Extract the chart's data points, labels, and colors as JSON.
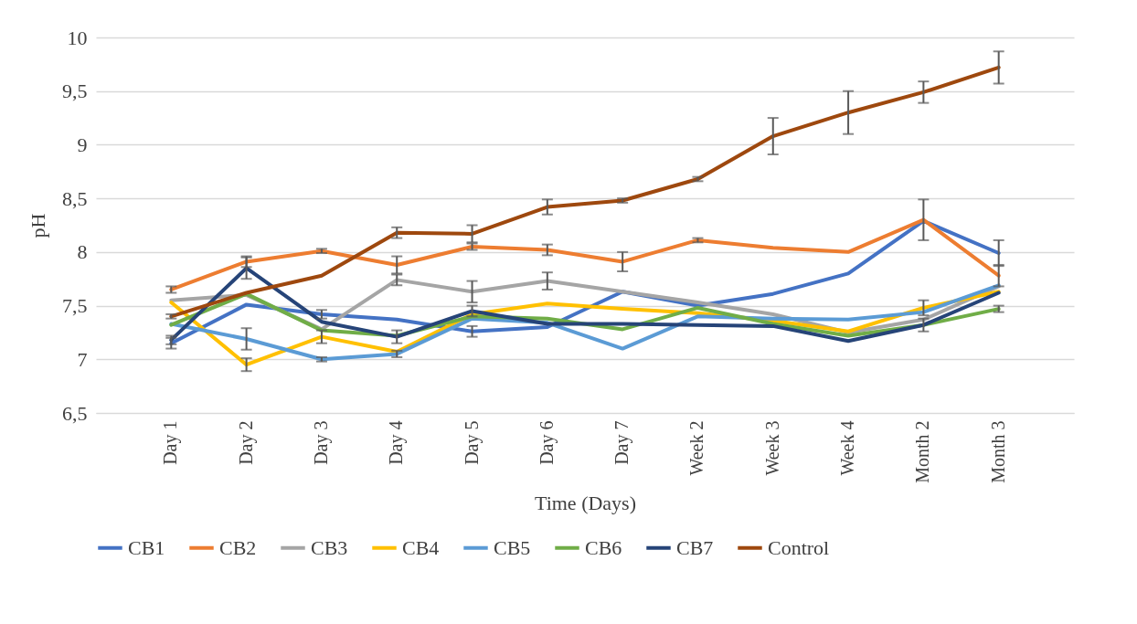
{
  "chart_data": {
    "type": "line",
    "xlabel": "Time (Days)",
    "ylabel": "pH",
    "categories": [
      "Day 1",
      "Day 2",
      "Day 3",
      "Day 4",
      "Day 5",
      "Day 6",
      "Day 7",
      "Week 2",
      "Week 3",
      "Week 4",
      "Month 2",
      "Month 3"
    ],
    "ylim": [
      6.5,
      10
    ],
    "yticks": [
      {
        "value": 6.5,
        "label": "6,5"
      },
      7,
      {
        "value": 7.5,
        "label": "7,5"
      },
      8,
      {
        "value": 8.5,
        "label": "8,5"
      },
      9,
      {
        "value": 9.5,
        "label": "9,5"
      },
      10
    ],
    "grid": "y",
    "legend": "bottom",
    "marker": "none",
    "line_style": "solid",
    "series": [
      {
        "name": "CB1",
        "color": "#4472c4",
        "values": [
          7.15,
          7.51,
          7.42,
          7.37,
          7.26,
          7.3,
          7.63,
          7.5,
          7.61,
          7.8,
          8.29,
          7.99
        ],
        "errors": [
          0.05,
          null,
          0.04,
          null,
          0.05,
          null,
          null,
          null,
          null,
          null,
          null,
          0.12
        ]
      },
      {
        "name": "CB2",
        "color": "#ed7d31",
        "values": [
          7.65,
          7.91,
          8.01,
          7.88,
          8.05,
          8.02,
          7.91,
          8.11,
          8.04,
          8.0,
          8.3,
          7.78
        ],
        "errors": [
          0.03,
          0.05,
          0.02,
          0.08,
          0.03,
          0.05,
          0.09,
          0.02,
          null,
          null,
          0.19,
          0.1
        ]
      },
      {
        "name": "CB3",
        "color": "#a5a5a5",
        "values": [
          7.55,
          7.6,
          7.28,
          7.74,
          7.63,
          7.73,
          7.63,
          7.53,
          7.42,
          7.25,
          7.37,
          7.68
        ],
        "errors": [
          null,
          null,
          null,
          0.05,
          0.1,
          0.08,
          null,
          null,
          null,
          null,
          null,
          null
        ]
      },
      {
        "name": "CB4",
        "color": "#ffc000",
        "values": [
          7.53,
          6.95,
          7.21,
          7.07,
          7.42,
          7.52,
          7.47,
          7.43,
          7.36,
          7.26,
          7.48,
          7.63
        ],
        "errors": [
          null,
          0.06,
          0.06,
          null,
          null,
          null,
          null,
          null,
          null,
          null,
          0.07,
          null
        ]
      },
      {
        "name": "CB5",
        "color": "#5b9bd5",
        "values": [
          7.33,
          7.19,
          7.0,
          7.05,
          7.38,
          7.34,
          7.1,
          7.4,
          7.38,
          7.37,
          7.44,
          7.69
        ],
        "errors": [
          null,
          0.1,
          0.02,
          0.03,
          null,
          null,
          null,
          null,
          null,
          null,
          null,
          null
        ]
      },
      {
        "name": "CB6",
        "color": "#70ad47",
        "values": [
          7.32,
          7.61,
          7.27,
          7.22,
          7.4,
          7.38,
          7.28,
          7.48,
          7.33,
          7.22,
          7.32,
          7.47
        ],
        "errors": [
          null,
          null,
          null,
          null,
          null,
          null,
          null,
          null,
          null,
          null,
          null,
          0.03
        ]
      },
      {
        "name": "CB7",
        "color": "#264478",
        "values": [
          7.18,
          7.85,
          7.35,
          7.21,
          7.45,
          7.33,
          7.33,
          7.32,
          7.31,
          7.17,
          7.32,
          7.62
        ],
        "errors": [
          0.04,
          0.1,
          null,
          0.06,
          0.05,
          null,
          null,
          null,
          null,
          null,
          0.06,
          null
        ]
      },
      {
        "name": "Control",
        "color": "#9e480e",
        "values": [
          7.4,
          7.62,
          7.78,
          8.18,
          8.17,
          8.42,
          8.48,
          8.68,
          9.08,
          9.3,
          9.49,
          9.72
        ],
        "errors": [
          0.02,
          null,
          null,
          0.05,
          0.08,
          0.07,
          0.02,
          0.02,
          0.17,
          0.2,
          0.1,
          0.15
        ]
      }
    ]
  }
}
